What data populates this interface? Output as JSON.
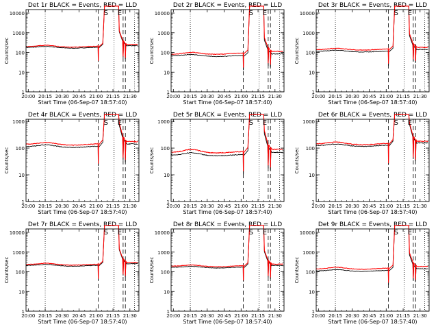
{
  "chart_data": [
    {
      "type": "line",
      "title": "Det 1r BLACK = Events, RED = LLD",
      "xlabel": "Start Time (06-Sep-07 18:57:40)",
      "ylabel": "Counts/sec",
      "x_ticks": [
        "20:00",
        "20:15",
        "20:30",
        "20:45",
        "21:00",
        "21:15",
        "21:30"
      ],
      "y_ticks": [
        "1",
        "10",
        "100",
        "1000",
        "10000"
      ],
      "ylim": [
        1,
        15000
      ],
      "y_scale": "log",
      "markers": [
        "S",
        "E"
      ],
      "series": [
        {
          "color": "#000000",
          "baseline_start": 180,
          "baseline_end": 185,
          "bump": 1.12
        },
        {
          "color": "#ff0000",
          "baseline_start": 200,
          "baseline_end": 210,
          "bump": 1.15
        }
      ]
    },
    {
      "type": "line",
      "title": "Det 2r BLACK = Events, RED = LLD",
      "xlabel": "Start Time (06-Sep-07 18:57:40)",
      "ylabel": "Counts/sec",
      "x_ticks": [
        "20:00",
        "20:15",
        "20:30",
        "20:45",
        "21:00",
        "21:15",
        "21:30"
      ],
      "y_ticks": [
        "1",
        "10",
        "100",
        "1000",
        "10000"
      ],
      "ylim": [
        1,
        15000
      ],
      "y_scale": "log",
      "markers": [
        "S",
        "E"
      ],
      "series": [
        {
          "color": "#000000",
          "baseline_start": 68,
          "baseline_end": 70,
          "bump": 1.15
        },
        {
          "color": "#ff0000",
          "baseline_start": 80,
          "baseline_end": 95,
          "bump": 1.2
        }
      ]
    },
    {
      "type": "line",
      "title": "Det 3r BLACK = Events, RED = LLD",
      "xlabel": "Start Time (06-Sep-07 18:57:40)",
      "ylabel": "Counts/sec",
      "x_ticks": [
        "20:00",
        "20:15",
        "20:30",
        "20:45",
        "21:00",
        "21:15",
        "21:30"
      ],
      "y_ticks": [
        "1",
        "10",
        "100",
        "1000",
        "10000"
      ],
      "ylim": [
        1,
        15000
      ],
      "y_scale": "log",
      "markers": [
        "S",
        "E"
      ],
      "series": [
        {
          "color": "#000000",
          "baseline_start": 115,
          "baseline_end": 118,
          "bump": 1.12
        },
        {
          "color": "#ff0000",
          "baseline_start": 140,
          "baseline_end": 150,
          "bump": 1.15
        }
      ]
    },
    {
      "type": "line",
      "title": "Det 4r BLACK = Events, RED = LLD",
      "xlabel": "Start Time (06-Sep-07 18:57:40)",
      "ylabel": "Counts/sec",
      "x_ticks": [
        "20:00",
        "20:15",
        "20:30",
        "20:45",
        "21:00",
        "21:15",
        "21:30"
      ],
      "y_ticks": [
        "1",
        "10",
        "100",
        "1000"
      ],
      "ylim": [
        1,
        1200
      ],
      "y_scale": "log",
      "markers": [
        "S",
        "E"
      ],
      "series": [
        {
          "color": "#000000",
          "baseline_start": 115,
          "baseline_end": 118,
          "bump": 1.15
        },
        {
          "color": "#ff0000",
          "baseline_start": 140,
          "baseline_end": 145,
          "bump": 1.15
        }
      ]
    },
    {
      "type": "line",
      "title": "Det 5r BLACK = Events, RED = LLD",
      "xlabel": "Start Time (06-Sep-07 18:57:40)",
      "ylabel": "Counts/sec",
      "x_ticks": [
        "20:00",
        "20:15",
        "20:30",
        "20:45",
        "21:00",
        "21:15",
        "21:30"
      ],
      "y_ticks": [
        "1",
        "10",
        "100",
        "1000"
      ],
      "ylim": [
        1,
        1200
      ],
      "y_scale": "log",
      "markers": [
        "S",
        "E"
      ],
      "series": [
        {
          "color": "#000000",
          "baseline_start": 55,
          "baseline_end": 58,
          "bump": 1.2
        },
        {
          "color": "#ff0000",
          "baseline_start": 70,
          "baseline_end": 75,
          "bump": 1.25
        }
      ]
    },
    {
      "type": "line",
      "title": "Det 6r BLACK = Events, RED = LLD",
      "xlabel": "Start Time (06-Sep-07 18:57:40)",
      "ylabel": "Counts/sec",
      "x_ticks": [
        "20:00",
        "20:15",
        "20:30",
        "20:45",
        "21:00",
        "21:15",
        "21:30"
      ],
      "y_ticks": [
        "1",
        "10",
        "100",
        "1000"
      ],
      "ylim": [
        1,
        1200
      ],
      "y_scale": "log",
      "markers": [
        "S",
        "E"
      ],
      "series": [
        {
          "color": "#000000",
          "baseline_start": 125,
          "baseline_end": 130,
          "bump": 1.12
        },
        {
          "color": "#ff0000",
          "baseline_start": 145,
          "baseline_end": 150,
          "bump": 1.15
        }
      ]
    },
    {
      "type": "line",
      "title": "Det 7r BLACK = Events, RED = LLD",
      "xlabel": "Start Time (06-Sep-07 18:57:40)",
      "ylabel": "Counts/sec",
      "x_ticks": [
        "20:00",
        "20:15",
        "20:30",
        "20:45",
        "21:00",
        "21:15",
        "21:30"
      ],
      "y_ticks": [
        "1",
        "10",
        "100",
        "1000",
        "10000"
      ],
      "ylim": [
        1,
        15000
      ],
      "y_scale": "log",
      "markers": [
        "S",
        "E"
      ],
      "series": [
        {
          "color": "#000000",
          "baseline_start": 210,
          "baseline_end": 215,
          "bump": 1.12
        },
        {
          "color": "#ff0000",
          "baseline_start": 235,
          "baseline_end": 245,
          "bump": 1.15
        }
      ]
    },
    {
      "type": "line",
      "title": "Det 8r BLACK = Events, RED = LLD",
      "xlabel": "Start Time (06-Sep-07 18:57:40)",
      "ylabel": "Counts/sec",
      "x_ticks": [
        "20:00",
        "20:15",
        "20:30",
        "20:45",
        "21:00",
        "21:15",
        "21:30"
      ],
      "y_ticks": [
        "1",
        "10",
        "100",
        "1000",
        "10000"
      ],
      "ylim": [
        1,
        15000
      ],
      "y_scale": "log",
      "markers": [
        "S",
        "E"
      ],
      "series": [
        {
          "color": "#000000",
          "baseline_start": 170,
          "baseline_end": 175,
          "bump": 1.1
        },
        {
          "color": "#ff0000",
          "baseline_start": 195,
          "baseline_end": 205,
          "bump": 1.12
        }
      ]
    },
    {
      "type": "line",
      "title": "Det 9r BLACK = Events, RED = LLD",
      "xlabel": "Start Time (06-Sep-07 18:57:40)",
      "ylabel": "Counts/sec",
      "x_ticks": [
        "20:00",
        "20:15",
        "20:30",
        "20:45",
        "21:00",
        "21:15",
        "21:30"
      ],
      "y_ticks": [
        "1",
        "10",
        "100",
        "1000",
        "10000"
      ],
      "ylim": [
        1,
        15000
      ],
      "y_scale": "log",
      "markers": [
        "S",
        "E"
      ],
      "series": [
        {
          "color": "#000000",
          "baseline_start": 110,
          "baseline_end": 120,
          "bump": 1.15
        },
        {
          "color": "#ff0000",
          "baseline_start": 140,
          "baseline_end": 155,
          "bump": 1.18
        }
      ]
    }
  ]
}
